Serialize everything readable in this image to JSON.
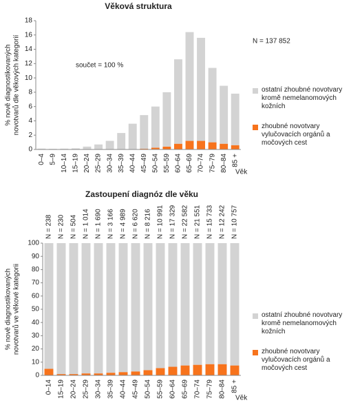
{
  "chart_data": [
    {
      "type": "bar",
      "stacked": true,
      "title": "Věková struktura",
      "ylabel": [
        "% nově diagnostikovaných",
        "novotvarů dle věkových kategorií"
      ],
      "xlabel": "Věk",
      "categories": [
        "0–4",
        "5–9",
        "10–14",
        "15–19",
        "20–24",
        "25–29",
        "30–34",
        "35–39",
        "40–44",
        "45–49",
        "50–54",
        "55–59",
        "60–64",
        "65–69",
        "70–74",
        "75–79",
        "80–84",
        "85 +"
      ],
      "series": [
        {
          "name": "zhoubné novotvary vylučovacích orgánů a močových cest",
          "color": "#f7731c",
          "values": [
            0.02,
            0.01,
            0.01,
            0.01,
            0.02,
            0.02,
            0.03,
            0.04,
            0.05,
            0.1,
            0.25,
            0.4,
            0.8,
            1.2,
            1.2,
            1.0,
            0.8,
            0.6
          ]
        },
        {
          "name": "ostatní zhoubné novotvary kromě nemelanomových kožních",
          "color": "#d3d3d3",
          "values": [
            0.1,
            0.08,
            0.1,
            0.14,
            0.38,
            0.68,
            1.17,
            2.26,
            3.55,
            4.7,
            5.75,
            7.6,
            11.8,
            15.2,
            14.4,
            10.4,
            8.1,
            7.2
          ]
        }
      ],
      "ylim": [
        0,
        18
      ],
      "yticks": [
        0,
        2,
        4,
        6,
        8,
        10,
        12,
        14,
        16,
        18
      ],
      "annotations": [
        "součet = 100 %",
        "N = 137 852"
      ],
      "legend": "right"
    },
    {
      "type": "bar",
      "stacked": true,
      "title": "Zastoupení diagnóz dle věku",
      "ylabel": [
        "% nově diagnostikovaných",
        "novotvarů ve věkové kategorii"
      ],
      "xlabel": "Věk",
      "categories": [
        "0–14",
        "15–19",
        "20–24",
        "25–29",
        "30–34",
        "35–39",
        "40–44",
        "45–49",
        "50–54",
        "55–59",
        "60–64",
        "65–69",
        "70–74",
        "75–79",
        "80–84",
        "85 +"
      ],
      "n_labels": [
        "N = 238",
        "N = 230",
        "N = 504",
        "N = 1 014",
        "N = 1 690",
        "N = 3 166",
        "N = 4 989",
        "N = 6 620",
        "N = 8 216",
        "N = 10 991",
        "N = 17 329",
        "N = 22 582",
        "N = 21 551",
        "N = 15 733",
        "N = 12 242",
        "N = 10 757"
      ],
      "series": [
        {
          "name": "zhoubné novotvary vylučovacích orgánů a močových cest",
          "color": "#f7731c",
          "values": [
            5,
            1,
            1,
            1.5,
            1.5,
            2,
            2.5,
            3,
            4,
            5.5,
            6.5,
            7.5,
            8,
            8.5,
            8.5,
            7.5
          ]
        },
        {
          "name": "ostatní zhoubné novotvary kromě nemelanomových kožních",
          "color": "#d3d3d3",
          "values": [
            95,
            99,
            99,
            98.5,
            98.5,
            98,
            97.5,
            97,
            96,
            94.5,
            93.5,
            92.5,
            92,
            91.5,
            91.5,
            92.5
          ]
        }
      ],
      "ylim": [
        0,
        100
      ],
      "yticks": [
        0,
        10,
        20,
        30,
        40,
        50,
        60,
        70,
        80,
        90,
        100
      ],
      "legend": "right"
    }
  ]
}
